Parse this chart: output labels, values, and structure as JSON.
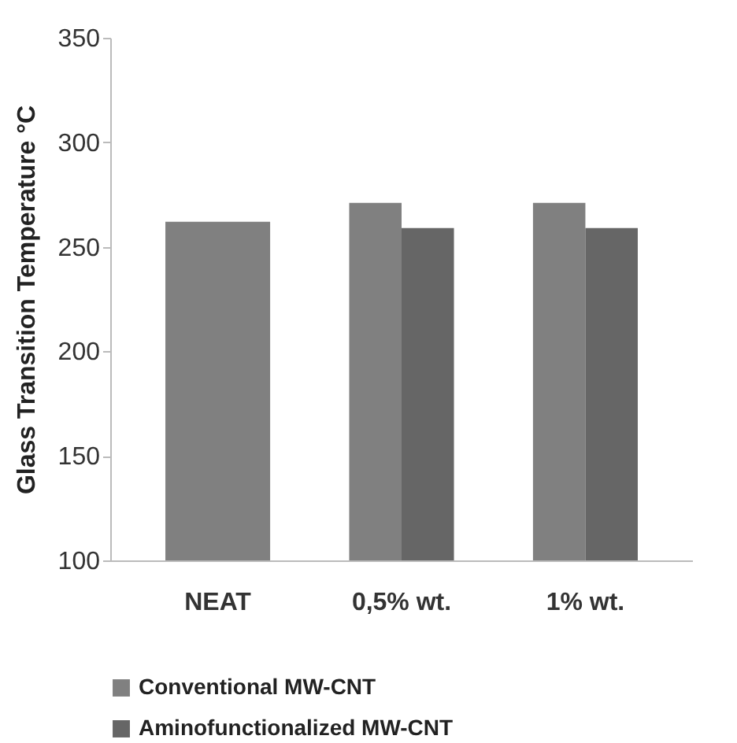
{
  "chart_data": {
    "type": "bar",
    "ylabel": "Glass Transition Temperature °C",
    "categories": [
      "NEAT",
      "0,5% wt.",
      "1% wt."
    ],
    "series": [
      {
        "name": "Conventional MW-CNT",
        "color": "#808080",
        "values": [
          262,
          271,
          271
        ]
      },
      {
        "name": "Aminofunctionalized MW-CNT",
        "color": "#666666",
        "values": [
          null,
          259,
          259
        ]
      }
    ],
    "ylim": [
      100,
      350
    ],
    "yticks": [
      100,
      150,
      200,
      250,
      300,
      350
    ],
    "grid": false,
    "legend": "bottom"
  }
}
